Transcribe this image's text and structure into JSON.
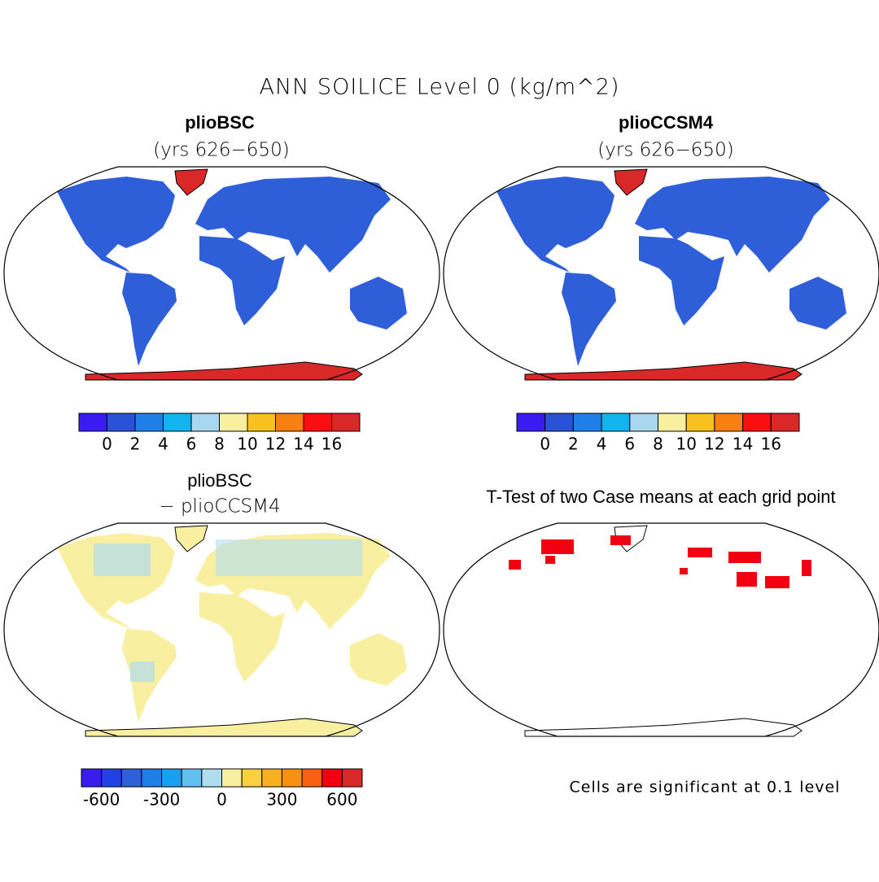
{
  "title": "ANN SOILICE Level 0 (kg/m^2)",
  "panels": [
    {
      "title": "plioBSC",
      "subtitle": "(yrs 626−650)"
    },
    {
      "title": "plioCCSM4",
      "subtitle": "(yrs 626−650)"
    },
    {
      "title": "plioBSC",
      "subtitle": "− plioCCSM4"
    },
    {
      "title": "T-Test of two Case means at each grid point"
    }
  ],
  "colorbars": [
    {
      "colors": [
        "#3a1cf0",
        "#2a52d8",
        "#1e7fe8",
        "#12b4f0",
        "#a8d8f0",
        "#f8f0a0",
        "#f8c020",
        "#f88010",
        "#f81010",
        "#d82828"
      ],
      "lim": [
        -2,
        18
      ],
      "ticks": [
        0,
        2,
        4,
        6,
        8,
        10,
        12,
        14,
        16
      ]
    },
    {
      "colors": [
        "#3a1cf0",
        "#2a52d8",
        "#1e7fe8",
        "#12b4f0",
        "#a8d8f0",
        "#f8f0a0",
        "#f8c020",
        "#f88010",
        "#f81010",
        "#d82828"
      ],
      "lim": [
        -2,
        18
      ],
      "ticks": [
        0,
        2,
        4,
        6,
        8,
        10,
        12,
        14,
        16
      ]
    },
    {
      "colors": [
        "#3a1cf0",
        "#2040e8",
        "#3060d8",
        "#1e7fe8",
        "#18a0f0",
        "#60c0f0",
        "#b0dcf0",
        "#f8f0a0",
        "#f8d040",
        "#f8b020",
        "#f89010",
        "#f86010",
        "#f00010",
        "#d82828"
      ],
      "lim": [
        -700,
        700
      ],
      "ticks": [
        -600,
        -300,
        0,
        300,
        600
      ]
    }
  ],
  "note": "Cells are significant at 0.1 level"
}
